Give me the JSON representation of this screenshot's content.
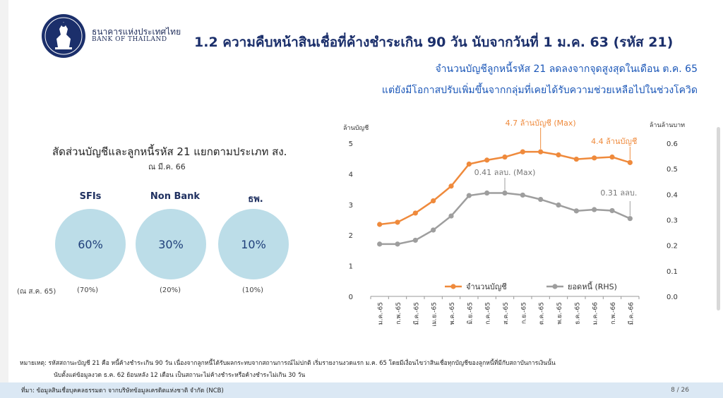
{
  "header": {
    "bank_name_th": "ธนาคารแห่งประเทศไทย",
    "bank_name_en": "BANK OF THAILAND",
    "title": "1.2  ความคืบหน้าสินเชื่อที่ค้างชำระเกิน 90 วัน นับจากวันที่ 1 ม.ค. 63 (รหัส  21)",
    "subtitle_line1": "จำนวนบัญชีลูกหนี้รหัส 21 ลดลงจากจุดสูงสุดในเดือน ต.ค. 65",
    "subtitle_line2": "แต่ยังมีโอกาสปรับเพิ่มขึ้นจากกลุ่มที่เคยได้รับความช่วยเหลือไปในช่วงโควิด"
  },
  "left_panel": {
    "title": "สัดส่วนบัญชีและลูกหนี้รหัส 21 แยกตามประเภท สง.",
    "date": "ณ มี.ค. 66",
    "prev_label": "(ณ ส.ค. 65)",
    "items": [
      {
        "name": "SFIs",
        "value": "60%",
        "prev": "(70%)"
      },
      {
        "name": "Non Bank",
        "value": "30%",
        "prev": "(20%)"
      },
      {
        "name": "ธพ.",
        "value": "10%",
        "prev": "(10%)"
      }
    ],
    "circle_color": "#bcdde8"
  },
  "chart_data": {
    "type": "line",
    "categories": [
      "ม.ค.-65",
      "ก.พ.-65",
      "มี.ค.-65",
      "เม.ย.-65",
      "พ.ค.-65",
      "มิ.ย.-65",
      "ก.ค.-65",
      "ส.ค.-65",
      "ก.ย.-65",
      "ต.ค.-65",
      "พ.ย.-65",
      "ธ.ค.-65",
      "ม.ค.-66",
      "ก.พ.-66",
      "มี.ค.-66"
    ],
    "ylabel_left": "ล้านบัญชี",
    "ylabel_right": "ล้านล้านบาท",
    "ylim_left": [
      0,
      5
    ],
    "ylim_right": [
      0,
      0.6
    ],
    "yticks_left": [
      "0",
      "1",
      "2",
      "3",
      "4",
      "5"
    ],
    "yticks_right": [
      "0.0",
      "0.1",
      "0.2",
      "0.3",
      "0.4",
      "0.5",
      "0.6"
    ],
    "series": [
      {
        "name": "จำนวนบัญชี",
        "axis": "left",
        "color": "#ef8a3c",
        "values": [
          2.35,
          2.42,
          2.72,
          3.12,
          3.6,
          4.32,
          4.45,
          4.55,
          4.72,
          4.72,
          4.62,
          4.48,
          4.52,
          4.55,
          4.37
        ]
      },
      {
        "name": "ยอดหนี้ (RHS)",
        "axis": "right",
        "color": "#9e9e9e",
        "values": [
          0.205,
          0.205,
          0.22,
          0.26,
          0.315,
          0.395,
          0.405,
          0.405,
          0.397,
          0.38,
          0.358,
          0.335,
          0.34,
          0.336,
          0.305
        ]
      }
    ],
    "annotations": [
      {
        "text": "4.7 ล้านบัญชี (Max)",
        "color": "#ef8a3c"
      },
      {
        "text": "4.4 ล้านบัญชี",
        "color": "#ef8a3c"
      },
      {
        "text": "0.41 ลลบ. (Max)",
        "color": "#777777"
      },
      {
        "text": "0.31 ลลบ.",
        "color": "#777777"
      }
    ],
    "legend_position": "bottom-center",
    "grid": false
  },
  "notes": {
    "line1": "หมายเหตุ: รหัสสถานะบัญชี 21 คือ หนี้ค้างชำระเกิน 90 วัน เนื่องจากลูกหนี้ได้รับผลกระทบจากสถานการณ์ไม่ปกติ เริ่มรายงานงวดแรก ม.ค. 65 โดยมีเงื่อนไขว่าสินเชื่อทุกบัญชีของลูกหนี้ที่มีกับสถาบันการเงินนั้น",
    "line2": "นับตั้งแต่ข้อมูลงวด ธ.ค. 62 ย้อนหลัง 12 เดือน เป็นสถานะไม่ค้างชำระหรือค้างชำระไม่เกิน 30 วัน"
  },
  "footer": {
    "source": "ที่มา: ข้อมูลสินเชื่อบุคคลธรรมดา จากบริษัทข้อมูลเครดิตแห่งชาติ จำกัด (NCB)",
    "page": "8 / 26"
  }
}
